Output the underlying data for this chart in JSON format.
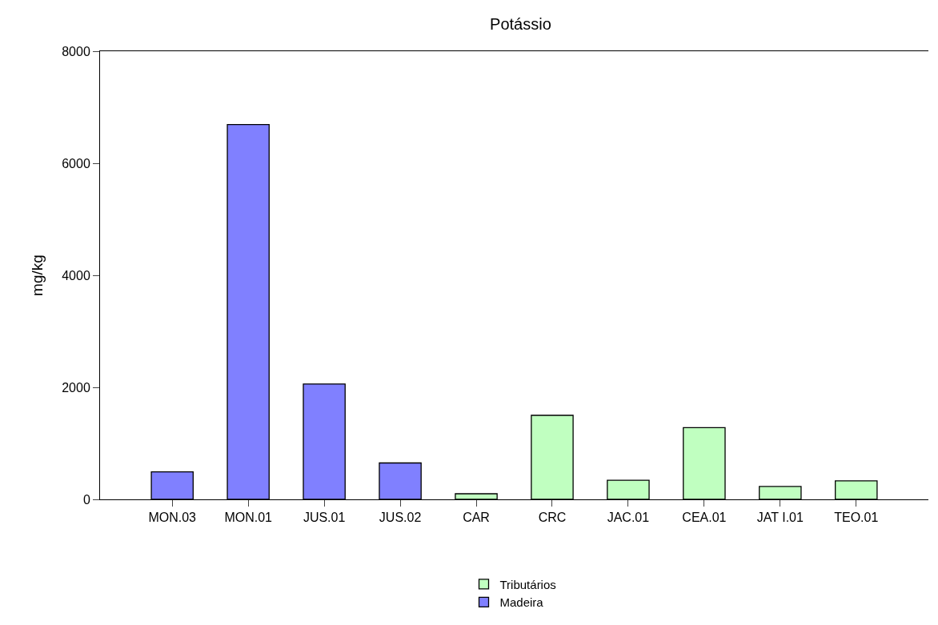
{
  "chart_data": {
    "type": "bar",
    "title": "Potássio",
    "ylabel": "mg/kg",
    "categories": [
      "MON.03",
      "MON.01",
      "JUS.01",
      "JUS.02",
      "CAR",
      "CRC",
      "JAC.01",
      "CEA.01",
      "JAT I.01",
      "TEO.01"
    ],
    "series": [
      {
        "name": "Tributários",
        "color": "#c0ffc0",
        "values": [
          null,
          null,
          null,
          null,
          100,
          1500,
          340,
          1280,
          230,
          330
        ]
      },
      {
        "name": "Madeira",
        "color": "#8080ff",
        "values": [
          490,
          6690,
          2060,
          650,
          null,
          null,
          null,
          null,
          null,
          null
        ]
      }
    ],
    "ylim": [
      0,
      8000
    ],
    "yticks": [
      0,
      2000,
      4000,
      6000,
      8000
    ],
    "legend": "bottom"
  }
}
